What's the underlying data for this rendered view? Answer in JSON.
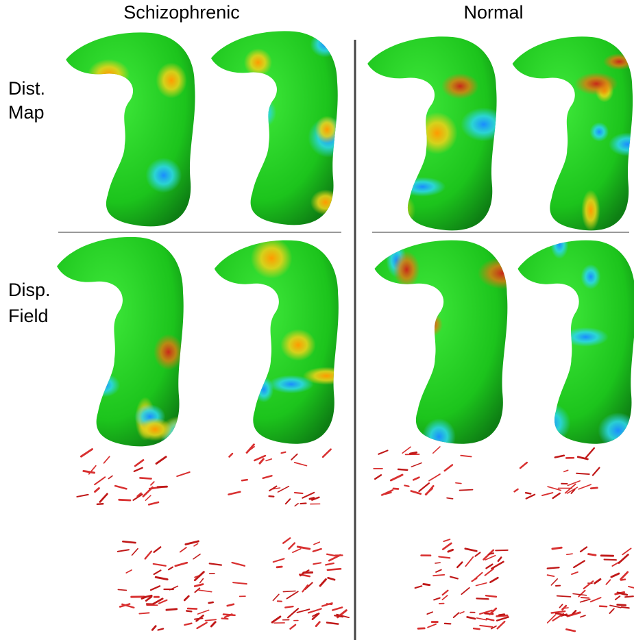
{
  "columns": [
    "Schizophrenic",
    "Normal"
  ],
  "rows": [
    {
      "line1": "Dist.",
      "line2": "Map"
    },
    {
      "line1": "Disp.",
      "line2": "Field"
    }
  ]
}
